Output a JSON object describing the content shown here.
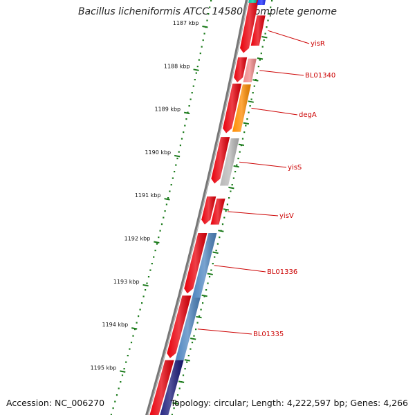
{
  "title": "Bacillus licheniformis ATCC 14580, complete genome",
  "accession": "Accession: NC_006270",
  "topology": "Topology: circular; Length: 4,222,597 bp; Genes: 4,266",
  "kbp_ticks": [
    {
      "label": "1187 kbp",
      "pos": 1187
    },
    {
      "label": "1188 kbp",
      "pos": 1188
    },
    {
      "label": "1189 kbp",
      "pos": 1189
    },
    {
      "label": "1190 kbp",
      "pos": 1190
    },
    {
      "label": "1191 kbp",
      "pos": 1191
    },
    {
      "label": "1192 kbp",
      "pos": 1192
    },
    {
      "label": "1193 kbp",
      "pos": 1193
    },
    {
      "label": "1194 kbp",
      "pos": 1194
    },
    {
      "label": "1195 kbp",
      "pos": 1195
    }
  ],
  "genes": [
    {
      "label": "yisR",
      "color": "#e8000b",
      "start": 1186.75,
      "end": 1187.45
    },
    {
      "label": "BL01340",
      "color": "#f08a8a",
      "start": 1187.75,
      "end": 1188.3
    },
    {
      "label": "degA",
      "color": "#ff8c00",
      "start": 1188.35,
      "end": 1189.45
    },
    {
      "label": "yisS",
      "color": "#b8b8b8",
      "start": 1189.6,
      "end": 1190.7
    },
    {
      "label": "yisV",
      "color": "#e8000b",
      "start": 1191.0,
      "end": 1191.6
    },
    {
      "label": "BL01336",
      "color": "#4f86c0",
      "start": 1191.8,
      "end": 1193.3
    },
    {
      "label": "BL01335",
      "color": "#4f86c0",
      "start": 1193.3,
      "end": 1194.75
    }
  ],
  "colors": {
    "cds": "#e8000b",
    "backbone": "#777777",
    "tick": "#1a7a1a",
    "label": "#cc0000",
    "navy": "#1a1a7a",
    "teal": "#00c8a0",
    "blue": "#1a2aff"
  }
}
